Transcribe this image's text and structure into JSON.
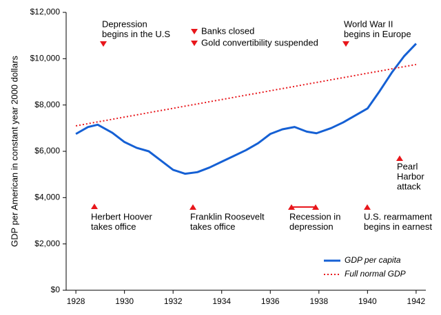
{
  "chart_data": {
    "type": "line",
    "y_label": "GDP per American in constant year 2000 dollars",
    "xlim": [
      1927.6,
      1942.4
    ],
    "xticks": [
      1928,
      1930,
      1932,
      1934,
      1936,
      1938,
      1940,
      1942
    ],
    "ylim": [
      0,
      12000
    ],
    "yticks": [
      {
        "value": 0,
        "label": "$0"
      },
      {
        "value": 2000,
        "label": "$2,000"
      },
      {
        "value": 4000,
        "label": "$4,000"
      },
      {
        "value": 6000,
        "label": "$6,000"
      },
      {
        "value": 8000,
        "label": "$8,000"
      },
      {
        "value": 10000,
        "label": "$10,000"
      },
      {
        "value": 12000,
        "label": "$12,000"
      }
    ],
    "series": [
      {
        "name": "GDP per capita",
        "color": "#1560d4",
        "style": "solid",
        "x": [
          1928,
          1928.5,
          1928.9,
          1929.5,
          1930,
          1930.5,
          1931,
          1931.5,
          1932,
          1932.5,
          1933,
          1933.5,
          1934,
          1934.5,
          1935,
          1935.5,
          1936,
          1936.5,
          1937,
          1937.5,
          1937.9,
          1938.5,
          1939,
          1939.5,
          1940,
          1940.5,
          1941,
          1941.5,
          1942
        ],
        "values": [
          6750,
          7050,
          7150,
          6800,
          6400,
          6150,
          6000,
          5600,
          5200,
          5030,
          5100,
          5300,
          5550,
          5800,
          6050,
          6350,
          6750,
          6950,
          7050,
          6850,
          6780,
          7000,
          7250,
          7550,
          7850,
          8600,
          9400,
          10100,
          10650
        ]
      },
      {
        "name": "Full normal GDP",
        "color": "#e8161b",
        "style": "dotted",
        "x": [
          1928,
          1942
        ],
        "values": [
          7100,
          9750
        ]
      }
    ],
    "annotations": [
      {
        "lines": [
          "Depression",
          "begins in the U.S"
        ]
      },
      {
        "lines": [
          "Banks closed"
        ]
      },
      {
        "lines": [
          "Gold convertibility suspended"
        ]
      },
      {
        "lines": [
          "World War II",
          "begins in Europe"
        ]
      },
      {
        "lines": [
          "Herbert Hoover",
          "takes office"
        ]
      },
      {
        "lines": [
          "Franklin Roosevelt",
          "takes office"
        ]
      },
      {
        "lines": [
          "Recession in",
          "depression"
        ]
      },
      {
        "lines": [
          "U.S. rearmament",
          "begins in earnest"
        ]
      },
      {
        "lines": [
          "Pearl",
          "Harbor",
          "attack"
        ]
      }
    ]
  }
}
